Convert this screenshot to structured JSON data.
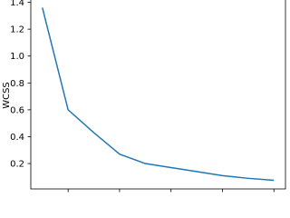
{
  "chart_data": {
    "type": "line",
    "y_label": "WCSS",
    "x": [
      1,
      2,
      3,
      4,
      5,
      6,
      7,
      8,
      9,
      10
    ],
    "series": [
      {
        "color": "#1f77b4",
        "values": [
          1.36,
          0.6,
          0.43,
          0.27,
          0.2,
          0.17,
          0.14,
          0.11,
          0.09,
          0.075
        ]
      }
    ],
    "xlim": [
      0.55,
      10.45
    ],
    "ylim": [
      0.011,
      1.424
    ],
    "xticks": [
      2,
      4,
      6,
      8,
      10
    ],
    "yticks": [
      0.2,
      0.4,
      0.6,
      0.8,
      1.0,
      1.2,
      1.4
    ],
    "grid": false
  }
}
